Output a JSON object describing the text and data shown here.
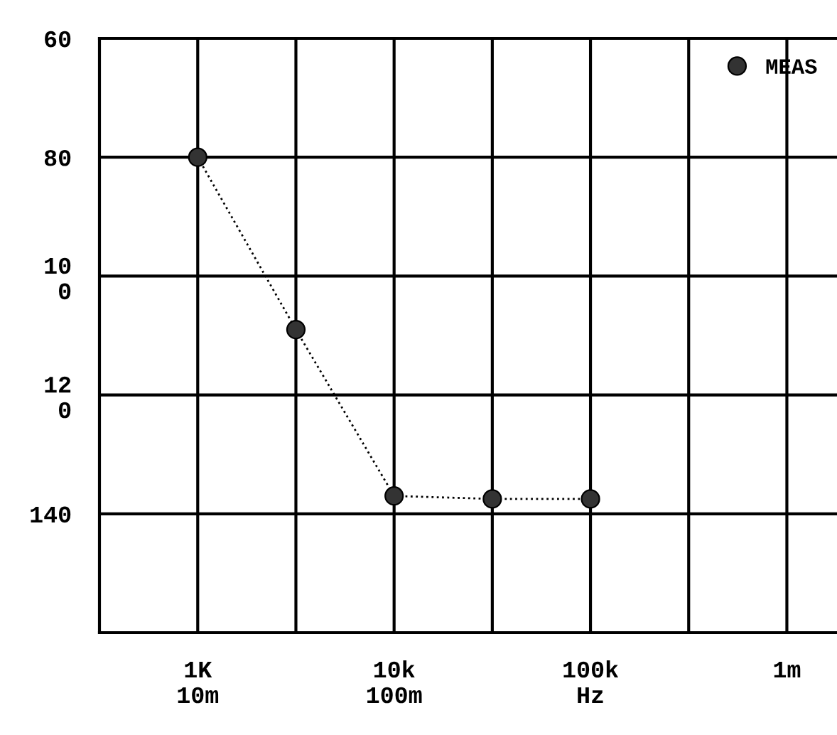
{
  "chart_data": {
    "type": "line",
    "x": [
      1000,
      3162,
      10000,
      31623,
      100000
    ],
    "series": [
      {
        "name": "MEAS",
        "color": "#333333",
        "values": [
          80,
          109,
          137,
          137.5,
          137.5
        ]
      }
    ],
    "xlim": [
      316,
      1800000
    ],
    "ylim": [
      160,
      60
    ],
    "log": "x",
    "xticks": [
      {
        "value": 1000,
        "label": "1K\n10m"
      },
      {
        "value": 3162,
        "label": null
      },
      {
        "value": 10000,
        "label": "10k\n100m"
      },
      {
        "value": 31623,
        "label": null
      },
      {
        "value": 100000,
        "label": "100k\nHz"
      },
      {
        "value": 316228,
        "label": null
      },
      {
        "value": 1000000,
        "label": "1m"
      }
    ],
    "yticks": [
      60,
      80,
      {
        "value": 100,
        "label": "10\n0"
      },
      {
        "value": 120,
        "label": "12\n0"
      },
      140,
      {
        "value": 160,
        "label": null
      }
    ],
    "grid": true,
    "legend": "top right",
    "marker": "circle",
    "line_style": "dotted"
  }
}
